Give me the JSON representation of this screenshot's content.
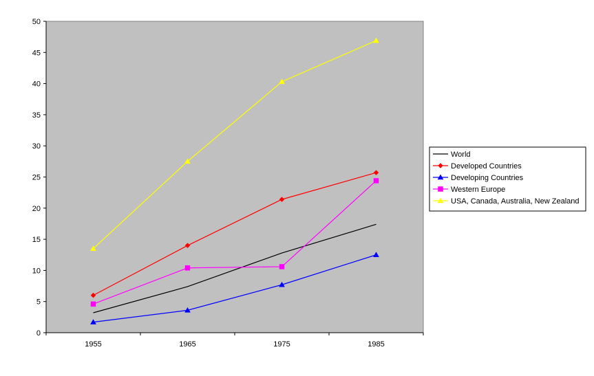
{
  "chart_data": {
    "type": "line",
    "title": "",
    "xlabel": "",
    "ylabel": "",
    "categories": [
      "1955",
      "1965",
      "1975",
      "1985"
    ],
    "ylim": [
      0,
      50
    ],
    "yticks": [
      0,
      5,
      10,
      15,
      20,
      25,
      30,
      35,
      40,
      45,
      50
    ],
    "grid": false,
    "plot_background": "#c0c0c0",
    "legend_position": "right",
    "series": [
      {
        "name": "World",
        "values": [
          3.2,
          7.4,
          12.8,
          17.4
        ],
        "color": "#000000",
        "marker": "none"
      },
      {
        "name": "Developed Countries",
        "values": [
          6.0,
          14.0,
          21.4,
          25.7
        ],
        "color": "#ff0000",
        "marker": "diamond"
      },
      {
        "name": "Developing Countries",
        "values": [
          1.7,
          3.6,
          7.7,
          12.5
        ],
        "color": "#0000ff",
        "marker": "triangle"
      },
      {
        "name": "Western Europe",
        "values": [
          4.6,
          10.4,
          10.6,
          24.4
        ],
        "color": "#ff00ff",
        "marker": "square"
      },
      {
        "name": "USA, Canada, Australia, New Zealand",
        "values": [
          13.5,
          27.5,
          40.3,
          46.9
        ],
        "color": "#ffff00",
        "marker": "triangle"
      }
    ]
  }
}
